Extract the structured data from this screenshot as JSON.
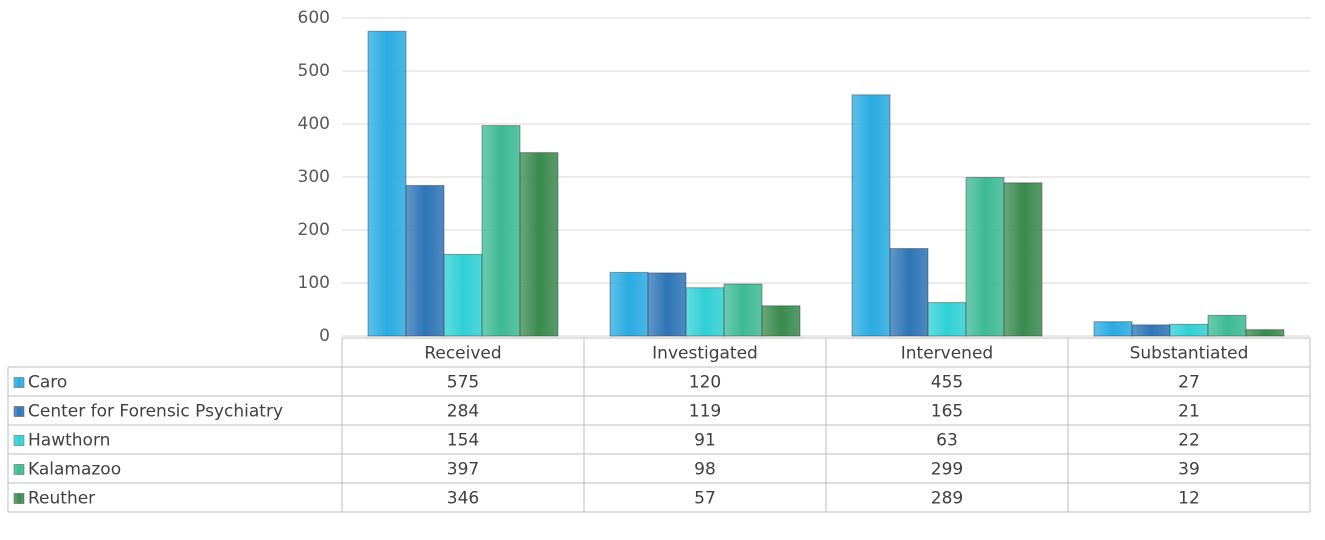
{
  "chart_data": {
    "type": "bar",
    "categories": [
      "Received",
      "Investigated",
      "Intervened",
      "Substantiated"
    ],
    "series": [
      {
        "name": "Caro",
        "color": "#29abe2",
        "values": [
          575,
          120,
          455,
          27
        ]
      },
      {
        "name": "Center for Forensic Psychiatry",
        "color": "#2e75b6",
        "values": [
          284,
          119,
          165,
          21
        ]
      },
      {
        "name": "Hawthorn",
        "color": "#2fd0d6",
        "values": [
          154,
          91,
          63,
          22
        ]
      },
      {
        "name": "Kalamazoo",
        "color": "#3dba94",
        "values": [
          397,
          98,
          299,
          39
        ]
      },
      {
        "name": "Reuther",
        "color": "#3a8a4f",
        "values": [
          346,
          57,
          289,
          12
        ]
      }
    ],
    "ylim": [
      0,
      600
    ],
    "yticks": [
      0,
      100,
      200,
      300,
      400,
      500,
      600
    ],
    "grid": true,
    "data_table": true
  }
}
